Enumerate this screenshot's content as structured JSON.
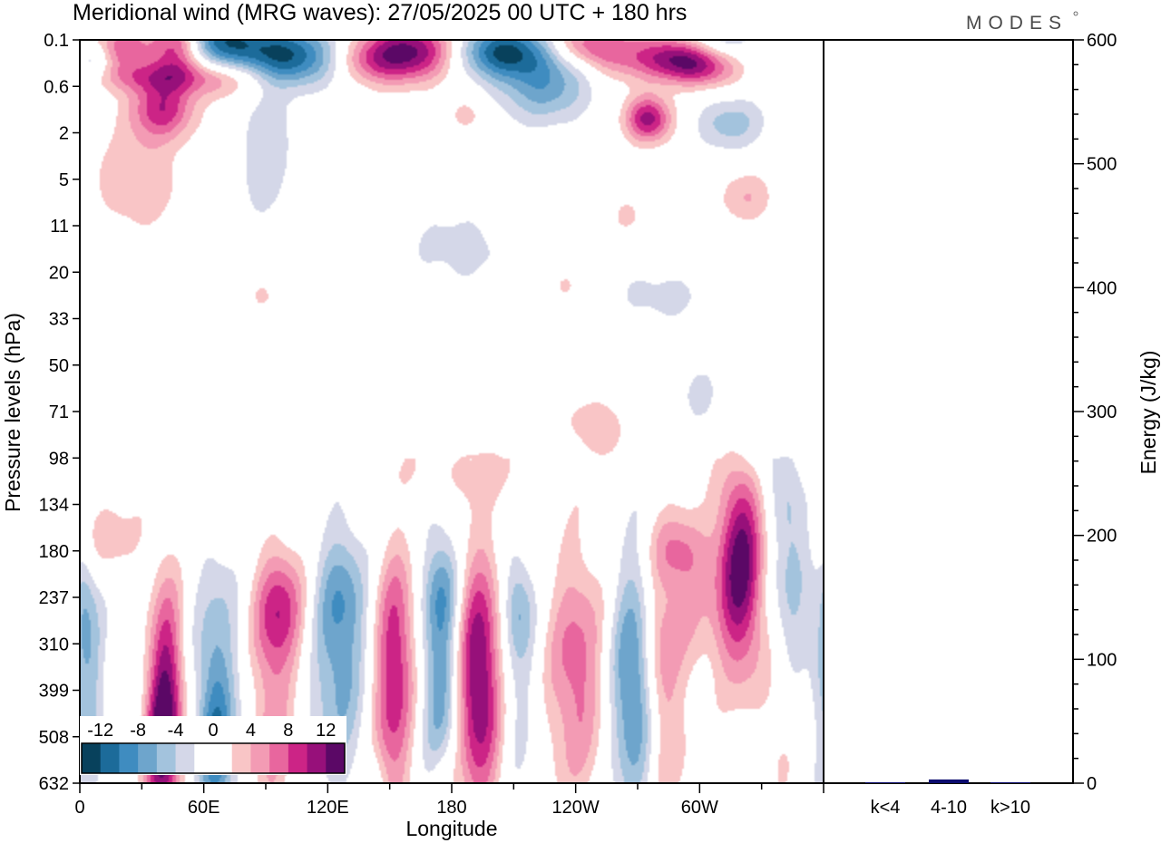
{
  "chart_data": [
    {
      "type": "heatmap",
      "title": "Meridional wind (MRG waves):  27/05/2025  00 UTC  + 180 hrs",
      "xlabel": "Longitude",
      "ylabel": "Pressure levels (hPa)",
      "x_ticks": [
        "0",
        "60E",
        "120E",
        "180",
        "120W",
        "60W"
      ],
      "x_range": [
        0,
        360
      ],
      "y_ticks": [
        "0.1",
        "0.6",
        "2",
        "5",
        "11",
        "20",
        "33",
        "50",
        "71",
        "98",
        "134",
        "180",
        "237",
        "310",
        "399",
        "508",
        "632"
      ],
      "colorbar": {
        "labels": [
          "-12",
          "-8",
          "-4",
          "0",
          "4",
          "8",
          "12"
        ],
        "colors": [
          "#08415c",
          "#1c6b9a",
          "#3f8cc0",
          "#6ea5cc",
          "#a3c3dd",
          "#d4d7e8",
          "#ffffff",
          "#ffffff",
          "#f9c5c6",
          "#f39bb4",
          "#e8669e",
          "#cc2486",
          "#97107a",
          "#5b0866"
        ]
      },
      "blobs": [
        {
          "lon": 40,
          "lev": 1.5,
          "sigma": [
            11,
            0.45
          ],
          "amp": 9
        },
        {
          "lon": 35,
          "lev": 0.8,
          "sigma": [
            22,
            0.25
          ],
          "amp": 6
        },
        {
          "lon": 28,
          "lev": 3.0,
          "sigma": [
            15,
            0.8
          ],
          "amp": 4
        },
        {
          "lon": 7,
          "lev": 0.45,
          "sigma": [
            6,
            0.3
          ],
          "amp": -5
        },
        {
          "lon": 20,
          "lev": 0.15,
          "sigma": [
            10,
            0.35
          ],
          "amp": 7
        },
        {
          "lon": 65,
          "lev": 0.05,
          "sigma": [
            14,
            0.45
          ],
          "amp": -12
        },
        {
          "lon": 48,
          "lev": 0.1,
          "sigma": [
            10,
            0.5
          ],
          "amp": 12
        },
        {
          "lon": 100,
          "lev": 0.35,
          "sigma": [
            18,
            0.45
          ],
          "amp": -12
        },
        {
          "lon": 90,
          "lev": 2.3,
          "sigma": [
            10,
            1.3
          ],
          "amp": -3.5
        },
        {
          "lon": 75,
          "lev": 0.8,
          "sigma": [
            14,
            0.35
          ],
          "amp": 6
        },
        {
          "lon": 160,
          "lev": 0.25,
          "sigma": [
            16,
            0.45
          ],
          "amp": 12
        },
        {
          "lon": 140,
          "lev": 0.45,
          "sigma": [
            12,
            0.35
          ],
          "amp": 5
        },
        {
          "lon": 205,
          "lev": 0.25,
          "sigma": [
            16,
            0.4
          ],
          "amp": -12
        },
        {
          "lon": 225,
          "lev": 1.0,
          "sigma": [
            16,
            0.55
          ],
          "amp": -7
        },
        {
          "lon": 260,
          "lev": 0.3,
          "sigma": [
            12,
            0.4
          ],
          "amp": 5
        },
        {
          "lon": 243,
          "lev": 0.1,
          "sigma": [
            12,
            0.3
          ],
          "amp": 6
        },
        {
          "lon": 290,
          "lev": 0.4,
          "sigma": [
            14,
            0.35
          ],
          "amp": 12
        },
        {
          "lon": 305,
          "lev": 0.6,
          "sigma": [
            12,
            0.3
          ],
          "amp": 5
        },
        {
          "lon": 308,
          "lev": 0.05,
          "sigma": [
            14,
            0.35
          ],
          "amp": -5
        },
        {
          "lon": 275,
          "lev": 1.7,
          "sigma": [
            8,
            0.35
          ],
          "amp": 11
        },
        {
          "lon": 315,
          "lev": 1.8,
          "sigma": [
            12,
            0.4
          ],
          "amp": -5
        },
        {
          "lon": 323,
          "lev": 3.4,
          "sigma": [
            9,
            0.4
          ],
          "amp": 4
        },
        {
          "lon": 265,
          "lev": 3.8,
          "sigma": [
            6,
            0.3
          ],
          "amp": 2.5
        },
        {
          "lon": 185,
          "lev": 4.5,
          "sigma": [
            25,
            0.8
          ],
          "amp": -2.5
        },
        {
          "lon": 187,
          "lev": 1.6,
          "sigma": [
            8,
            0.3
          ],
          "amp": 2.5
        },
        {
          "lon": 280,
          "lev": 5.5,
          "sigma": [
            22,
            0.55
          ],
          "amp": -2.5
        },
        {
          "lon": 235,
          "lev": 5.3,
          "sigma": [
            8,
            0.35
          ],
          "amp": 2.5
        },
        {
          "lon": 88,
          "lev": 5.5,
          "sigma": [
            6,
            0.3
          ],
          "amp": 2.5
        },
        {
          "lon": 255,
          "lev": 8.5,
          "sigma": [
            7,
            0.5
          ],
          "amp": 2.5
        },
        {
          "lon": 10,
          "lev": 10.7,
          "sigma": [
            14,
            0.6
          ],
          "amp": 3.5
        },
        {
          "lon": 2,
          "lev": 12.0,
          "sigma": [
            4,
            1.0
          ],
          "amp": -3
        },
        {
          "lon": 42,
          "lev": 14.2,
          "sigma": [
            6,
            1.7
          ],
          "amp": 12
        },
        {
          "lon": 38,
          "lev": 15.4,
          "sigma": [
            5,
            1.0
          ],
          "amp": 7
        },
        {
          "lon": 66,
          "lev": 14.3,
          "sigma": [
            8,
            2.2
          ],
          "amp": -7
        },
        {
          "lon": 66,
          "lev": 15.3,
          "sigma": [
            5,
            1.0
          ],
          "amp": -4
        },
        {
          "lon": 4,
          "lev": 14.0,
          "sigma": [
            6,
            2.0
          ],
          "amp": -5
        },
        {
          "lon": 98,
          "lev": 12.3,
          "sigma": [
            9,
            0.9
          ],
          "amp": 8
        },
        {
          "lon": 93,
          "lev": 14.6,
          "sigma": [
            7,
            2.0
          ],
          "amp": 5
        },
        {
          "lon": 128,
          "lev": 12.0,
          "sigma": [
            8,
            0.8
          ],
          "amp": -2.5
        },
        {
          "lon": 125,
          "lev": 13.2,
          "sigma": [
            10,
            1.9
          ],
          "amp": -7
        },
        {
          "lon": 153,
          "lev": 13.0,
          "sigma": [
            7,
            1.5
          ],
          "amp": 8
        },
        {
          "lon": 150,
          "lev": 15.2,
          "sigma": [
            7,
            1.6
          ],
          "amp": 5
        },
        {
          "lon": 175,
          "lev": 13.5,
          "sigma": [
            7,
            2.0
          ],
          "amp": -8
        },
        {
          "lon": 175,
          "lev": 11.8,
          "sigma": [
            6,
            0.7
          ],
          "amp": -3
        },
        {
          "lon": 193,
          "lev": 13.8,
          "sigma": [
            8,
            1.9
          ],
          "amp": 13
        },
        {
          "lon": 212,
          "lev": 13.5,
          "sigma": [
            7,
            1.9
          ],
          "amp": -3.5
        },
        {
          "lon": 212,
          "lev": 12.2,
          "sigma": [
            5,
            0.7
          ],
          "amp": -4
        },
        {
          "lon": 240,
          "lev": 13.6,
          "sigma": [
            10,
            1.8
          ],
          "amp": 7
        },
        {
          "lon": 268,
          "lev": 13.7,
          "sigma": [
            8,
            1.9
          ],
          "amp": -10
        },
        {
          "lon": 280,
          "lev": 13.5,
          "sigma": [
            6,
            1.2
          ],
          "amp": 4
        },
        {
          "lon": 285,
          "lev": 15.3,
          "sigma": [
            8,
            1.2
          ],
          "amp": 3
        },
        {
          "lon": 290,
          "lev": 12.5,
          "sigma": [
            18,
            1.0
          ],
          "amp": 3.5
        },
        {
          "lon": 290,
          "lev": 11.0,
          "sigma": [
            10,
            0.6
          ],
          "amp": 6
        },
        {
          "lon": 320,
          "lev": 11.3,
          "sigma": [
            8,
            1.6
          ],
          "amp": 13
        },
        {
          "lon": 343,
          "lev": 12.0,
          "sigma": [
            8,
            1.4
          ],
          "amp": -5
        },
        {
          "lon": 344,
          "lev": 10.0,
          "sigma": [
            7,
            0.7
          ],
          "amp": -3.5
        },
        {
          "lon": 188,
          "lev": 9.3,
          "sigma": [
            28,
            0.45
          ],
          "amp": 2.5
        },
        {
          "lon": 300,
          "lev": 7.6,
          "sigma": [
            10,
            0.6
          ],
          "amp": -2.5
        },
        {
          "lon": 245,
          "lev": 8.2,
          "sigma": [
            10,
            0.35
          ],
          "amp": 2.5
        },
        {
          "lon": 325,
          "lev": 8.8,
          "sigma": [
            8,
            0.5
          ],
          "amp": -3
        },
        {
          "lon": 338,
          "lev": 14.5,
          "sigma": [
            6,
            1.8
          ],
          "amp": 2.5
        },
        {
          "lon": 176,
          "lev": 16.0,
          "sigma": [
            5,
            0.6
          ],
          "amp": 3
        },
        {
          "lon": 142,
          "lev": 16.0,
          "sigma": [
            5,
            0.6
          ],
          "amp": -2.5
        }
      ]
    },
    {
      "type": "bar",
      "ylabel": "Energy (J/kg)",
      "categories": [
        "k<4",
        "4-10",
        "k>10"
      ],
      "values": [
        0.5,
        3,
        0.5
      ],
      "ylim": [
        0,
        600
      ],
      "y_ticks": [
        "0",
        "100",
        "200",
        "300",
        "400",
        "500",
        "600"
      ],
      "bar_color": "#0b0b6e"
    }
  ],
  "brand": "MODES"
}
